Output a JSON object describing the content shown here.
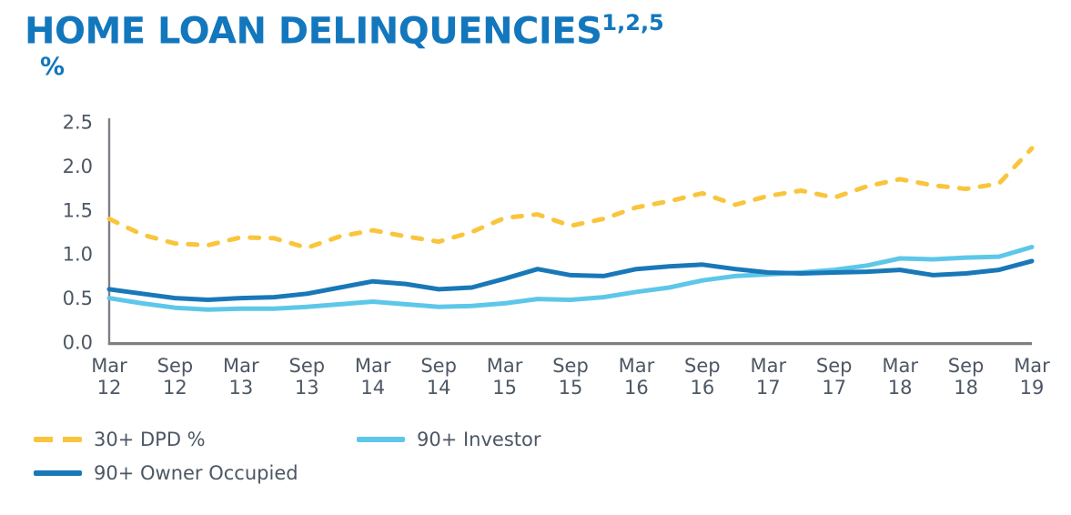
{
  "chart_data": {
    "type": "line",
    "title": "HOME LOAN DELINQUENCIES",
    "title_superscript": "1,2,5",
    "ylabel": "%",
    "xlabel": "",
    "ylim": [
      0.0,
      2.5
    ],
    "grid": false,
    "legend_position": "bottom-left",
    "y_tick_labels": [
      "0.0",
      "0.5",
      "1.0",
      "1.5",
      "2.0",
      "2.5"
    ],
    "x_tick_labels": [
      "Mar 12",
      "Sep 12",
      "Mar 13",
      "Sep 13",
      "Mar 14",
      "Sep 14",
      "Mar 15",
      "Sep 15",
      "Mar 16",
      "Sep 16",
      "Mar 17",
      "Sep 17",
      "Mar 18",
      "Sep 18",
      "Mar 19"
    ],
    "categories": [
      "Mar 12",
      "Jun 12",
      "Sep 12",
      "Dec 12",
      "Mar 13",
      "Jun 13",
      "Sep 13",
      "Dec 13",
      "Mar 14",
      "Jun 14",
      "Sep 14",
      "Dec 14",
      "Mar 15",
      "Jun 15",
      "Sep 15",
      "Dec 15",
      "Mar 16",
      "Jun 16",
      "Sep 16",
      "Dec 16",
      "Mar 17",
      "Jun 17",
      "Sep 17",
      "Dec 17",
      "Mar 18",
      "Jun 18",
      "Sep 18",
      "Dec 18",
      "Mar 19"
    ],
    "series": [
      {
        "name": "30+ DPD %",
        "color": "#f9c53d",
        "line_style": "dashed",
        "values": [
          1.4,
          1.22,
          1.12,
          1.1,
          1.19,
          1.18,
          1.07,
          1.2,
          1.27,
          1.2,
          1.14,
          1.25,
          1.41,
          1.45,
          1.32,
          1.4,
          1.53,
          1.6,
          1.69,
          1.56,
          1.66,
          1.72,
          1.64,
          1.77,
          1.85,
          1.78,
          1.74,
          1.8,
          2.2
        ]
      },
      {
        "name": "90+ Investor",
        "color": "#5ec7e9",
        "line_style": "solid",
        "values": [
          0.5,
          0.44,
          0.39,
          0.37,
          0.38,
          0.38,
          0.4,
          0.43,
          0.46,
          0.43,
          0.4,
          0.41,
          0.44,
          0.49,
          0.48,
          0.51,
          0.57,
          0.62,
          0.7,
          0.75,
          0.77,
          0.79,
          0.82,
          0.87,
          0.95,
          0.94,
          0.96,
          0.97,
          1.08
        ]
      },
      {
        "name": "90+ Owner Occupied",
        "color": "#1878b8",
        "line_style": "solid",
        "values": [
          0.6,
          0.55,
          0.5,
          0.48,
          0.5,
          0.51,
          0.55,
          0.62,
          0.69,
          0.66,
          0.6,
          0.62,
          0.72,
          0.83,
          0.76,
          0.75,
          0.83,
          0.86,
          0.88,
          0.83,
          0.79,
          0.78,
          0.79,
          0.8,
          0.82,
          0.76,
          0.78,
          0.82,
          0.92
        ]
      }
    ]
  },
  "colors": {
    "title": "#1277bd",
    "axis_text": "#4d5764",
    "legend_text": "#4d5764",
    "axis_line": "#7d7f82"
  }
}
